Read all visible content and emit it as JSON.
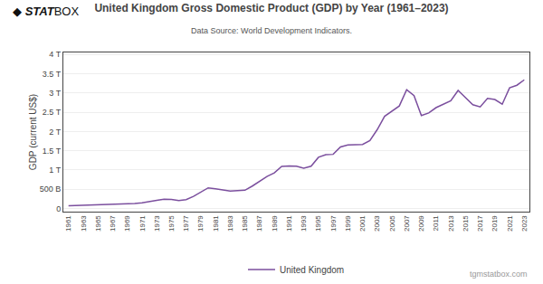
{
  "chart_data": {
    "type": "line",
    "title": "United Kingdom Gross Domestic Product (GDP) by Year (1961–2023)",
    "subtitle": "Data Source: World Development Indicators.",
    "y_label": "GDP (current US$)",
    "annotations": [
      "◆",
      "STAT",
      "BOX",
      "tgmstatbox.com"
    ],
    "x": [
      1961,
      1962,
      1963,
      1964,
      1965,
      1966,
      1967,
      1968,
      1969,
      1970,
      1971,
      1972,
      1973,
      1974,
      1975,
      1976,
      1977,
      1978,
      1979,
      1980,
      1981,
      1982,
      1983,
      1984,
      1985,
      1986,
      1987,
      1988,
      1989,
      1990,
      1991,
      1992,
      1993,
      1994,
      1995,
      1996,
      1997,
      1998,
      1999,
      2000,
      2001,
      2002,
      2003,
      2004,
      2005,
      2006,
      2007,
      2008,
      2009,
      2010,
      2011,
      2012,
      2013,
      2014,
      2015,
      2016,
      2017,
      2018,
      2019,
      2020,
      2021,
      2022,
      2023
    ],
    "series": [
      {
        "name": "United Kingdom",
        "color": "#7b4f9e",
        "values": [
          73700000000,
          78200000000,
          83100000000,
          90700000000,
          98000000000,
          104000000000,
          108000000000,
          111000000000,
          122000000000,
          130000000000,
          147000000000,
          173000000000,
          216000000000,
          245000000000,
          238000000000,
          208000000000,
          233000000000,
          317000000000,
          431000000000,
          538000000000,
          512000000000,
          484000000000,
          454000000000,
          464000000000,
          475000000000,
          583000000000,
          699000000000,
          834000000000,
          925000000000,
          1094000000000,
          1105000000000,
          1100000000000,
          1045000000000,
          1099000000000,
          1330000000000,
          1399000000000,
          1407000000000,
          1600000000000,
          1652000000000,
          1657000000000,
          1664000000000,
          1766000000000,
          2049000000000,
          2394000000000,
          2522000000000,
          2662000000000,
          3084000000000,
          2930000000000,
          2412000000000,
          2481000000000,
          2618000000000,
          2706000000000,
          2794000000000,
          3064000000000,
          2886000000000,
          2693000000000,
          2637000000000,
          2857000000000,
          2829000000000,
          2708000000000,
          3131000000000,
          3200000000000,
          3340000000000
        ]
      }
    ],
    "xlim": [
      1960.3,
      2023.7
    ],
    "xticks": [
      1961,
      1963,
      1965,
      1967,
      1969,
      1971,
      1973,
      1975,
      1977,
      1979,
      1981,
      1983,
      1985,
      1987,
      1989,
      1991,
      1993,
      1995,
      1997,
      1999,
      2001,
      2003,
      2005,
      2007,
      2009,
      2011,
      2013,
      2015,
      2017,
      2019,
      2021,
      2023
    ],
    "ylim": [
      -80000000000,
      4050000000000
    ],
    "yticks": [
      0,
      {
        "value": 500000000000,
        "label": "500 B"
      },
      {
        "value": 1000000000000,
        "label": "1 T"
      },
      {
        "value": 1500000000000,
        "label": "1.5 T"
      },
      {
        "value": 2000000000000,
        "label": "2 T"
      },
      {
        "value": 2500000000000,
        "label": "2.5 T"
      },
      {
        "value": 3000000000000,
        "label": "3 T"
      },
      {
        "value": 3500000000000,
        "label": "3.5 T"
      },
      {
        "value": 4000000000000,
        "label": "4 T"
      }
    ],
    "grid": true,
    "legend": "bottom"
  }
}
